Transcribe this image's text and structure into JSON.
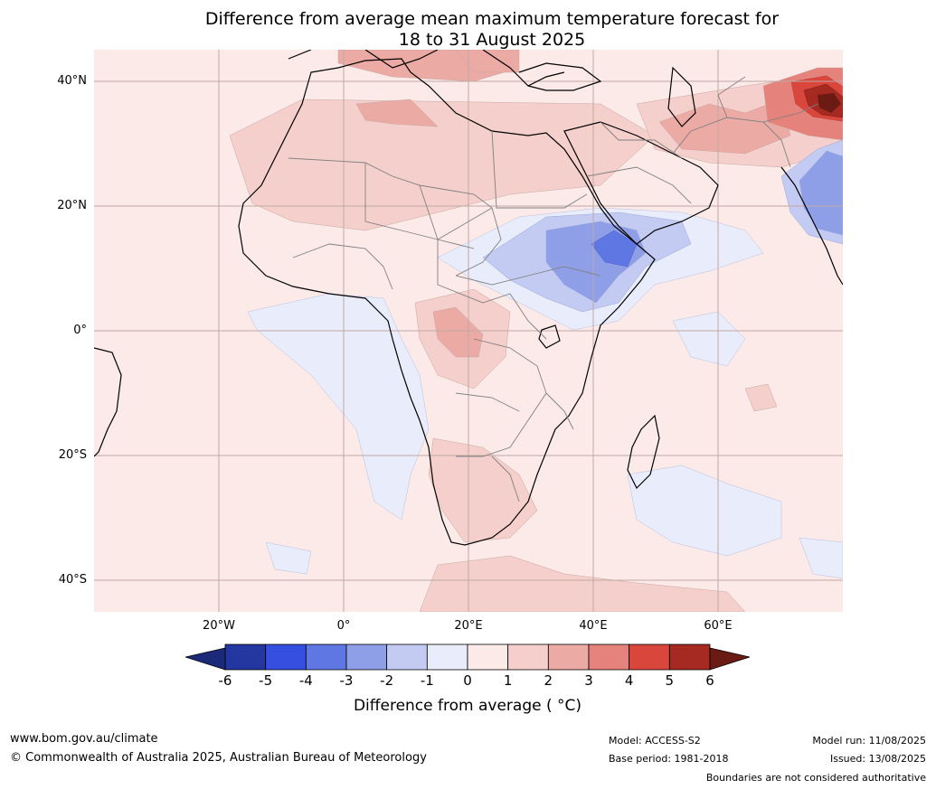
{
  "title": {
    "line1": "Difference from average mean maximum temperature forecast for",
    "line2": "18 to 31 August 2025"
  },
  "axes": {
    "lat_labels": [
      {
        "text": "40°N",
        "lat": 40
      },
      {
        "text": "20°N",
        "lat": 20
      },
      {
        "text": "0°",
        "lat": 0
      },
      {
        "text": "20°S",
        "lat": -20
      },
      {
        "text": "40°S",
        "lat": -40
      }
    ],
    "lon_labels": [
      {
        "text": "20°W",
        "lon": -20
      },
      {
        "text": "0°",
        "lon": 0
      },
      {
        "text": "20°E",
        "lon": 20
      },
      {
        "text": "40°E",
        "lon": 40
      },
      {
        "text": "60°E",
        "lon": 60
      }
    ],
    "lon_range": [
      -40,
      80
    ],
    "lat_range": [
      -45,
      45
    ]
  },
  "colorbar": {
    "label": "Difference from average ( °C)",
    "ticks": [
      "-6",
      "-5",
      "-4",
      "-3",
      "-2",
      "-1",
      "0",
      "1",
      "2",
      "3",
      "4",
      "5",
      "6"
    ],
    "colors": [
      "#2436a0",
      "#3550e0",
      "#5f77e2",
      "#8e9fe8",
      "#c3cbf3",
      "#e9edfb",
      "#fbeae8",
      "#f4cfcb",
      "#ecaaa5",
      "#e5827c",
      "#d8463c",
      "#a72a22"
    ],
    "under_color": "#1a2a78",
    "over_color": "#6b1a14"
  },
  "colors": {
    "ocean_base": "#fbeae8",
    "land_line": "#000000",
    "border_line": "#808080",
    "grid_line": "#c0a8a6"
  },
  "footer": {
    "website": "www.bom.gov.au/climate",
    "copyright": "© Commonwealth of Australia 2025, Australian Bureau of Meteorology",
    "model": "Model: ACCESS-S2",
    "base_period": "Base period: 1981-2018",
    "model_run": "Model run: 11/08/2025",
    "issued": "Issued: 13/08/2025",
    "disclaimer": "Boundaries are not considered authoritative"
  }
}
